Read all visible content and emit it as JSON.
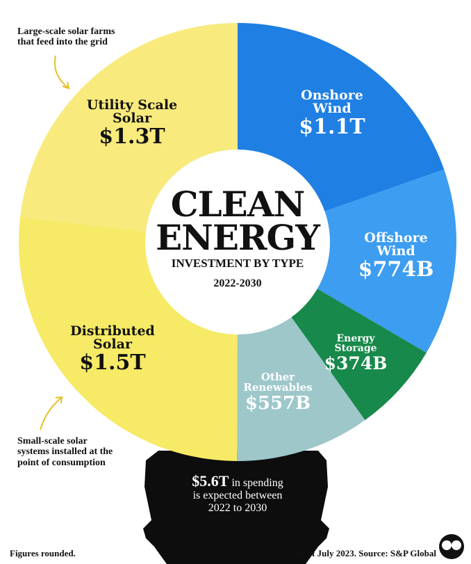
{
  "chart_data": {
    "type": "pie",
    "title": [
      "CLEAN",
      "ENERGY"
    ],
    "subtitle": "INVESTMENT BY TYPE",
    "period": "2022-2030",
    "unit": "USD",
    "slices": [
      {
        "name": "Onshore Wind",
        "value": 1100,
        "label": "$1.1T",
        "color": "#1f7fe3"
      },
      {
        "name": "Offshore Wind",
        "value": 774,
        "label": "$774B",
        "color": "#3d9df0"
      },
      {
        "name": "Energy Storage",
        "value": 374,
        "label": "$374B",
        "color": "#17894a"
      },
      {
        "name": "Other Renewables",
        "value": 557,
        "label": "$557B",
        "color": "#9ec7ca"
      },
      {
        "name": "Distributed Solar",
        "value": 1500,
        "label": "$1.5T",
        "color": "#f6ea66"
      },
      {
        "name": "Utility Scale Solar",
        "value": 1300,
        "label": "$1.3T",
        "color": "#f8ea7c"
      }
    ]
  },
  "labels": {
    "onshore": {
      "name1": "Onshore",
      "name2": "Wind",
      "value": "$1.1T"
    },
    "offshore": {
      "name1": "Offshore",
      "name2": "Wind",
      "value": "$774B"
    },
    "storage": {
      "name1": "Energy",
      "name2": "Storage",
      "value": "$374B"
    },
    "other": {
      "name1": "Other",
      "name2": "Renewables",
      "value": "$557B"
    },
    "distributed": {
      "name1": "Distributed",
      "name2": "Solar",
      "value": "$1.5T"
    },
    "utility": {
      "name1": "Utility Scale",
      "name2": "Solar",
      "value": "$1.3T"
    }
  },
  "annotations": {
    "utility_note": [
      "Large-scale solar farms",
      "that feed into the grid"
    ],
    "distributed_note": [
      "Small-scale solar",
      "systems installed at the",
      "point of consumption"
    ]
  },
  "total": {
    "amount": "$5.6T",
    "line1": " in spending",
    "line2": "is expected between",
    "line3": "2022 to 2030"
  },
  "footer": {
    "left": "Figures rounded.",
    "right": "As of July 2023. Source: S&P Global"
  }
}
